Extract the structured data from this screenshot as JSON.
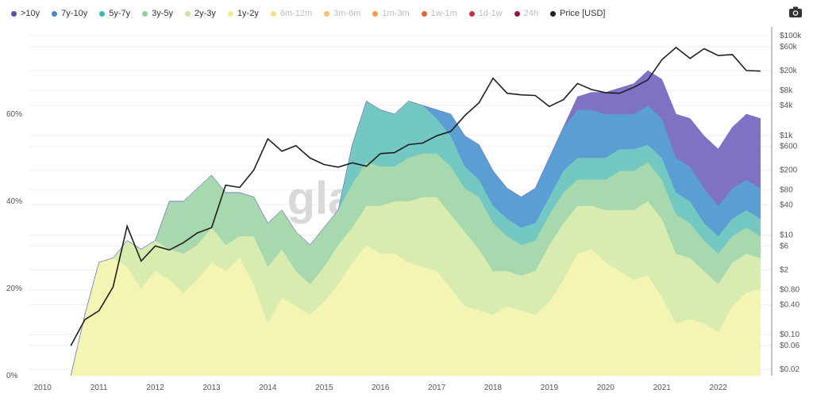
{
  "chart_data": {
    "type": "area",
    "stacked": true,
    "legend_placement": "top-left",
    "grid": true,
    "watermark": "glassnode",
    "x": [
      "2010-07",
      "2010-10",
      "2011-01",
      "2011-04",
      "2011-07",
      "2011-10",
      "2012-01",
      "2012-04",
      "2012-07",
      "2012-10",
      "2013-01",
      "2013-04",
      "2013-07",
      "2013-10",
      "2014-01",
      "2014-04",
      "2014-07",
      "2014-10",
      "2015-01",
      "2015-04",
      "2015-07",
      "2015-10",
      "2016-01",
      "2016-04",
      "2016-07",
      "2016-10",
      "2017-01",
      "2017-04",
      "2017-07",
      "2017-10",
      "2018-01",
      "2018-04",
      "2018-07",
      "2018-10",
      "2019-01",
      "2019-04",
      "2019-07",
      "2019-10",
      "2020-01",
      "2020-04",
      "2020-07",
      "2020-10",
      "2021-01",
      "2021-04",
      "2021-07",
      "2021-10",
      "2022-01",
      "2022-04",
      "2022-07",
      "2022-10"
    ],
    "series": [
      {
        "name": "1y-2y",
        "color": "#f5f5b3",
        "values": [
          0,
          14,
          26,
          27,
          25,
          20,
          24,
          22,
          19,
          22,
          26,
          24,
          27,
          21,
          12,
          18,
          16,
          14,
          17,
          21,
          26,
          30,
          28,
          28,
          26,
          25,
          24,
          20,
          16,
          15,
          14,
          16,
          15,
          14,
          17,
          22,
          28,
          29,
          26,
          24,
          22,
          23,
          18,
          12,
          13,
          12,
          10,
          16,
          19,
          20
        ]
      },
      {
        "name": "2y-3y",
        "color": "#d8ecb0",
        "values": [
          0,
          0,
          0,
          0,
          6,
          9,
          7,
          7,
          9,
          8,
          8,
          6,
          5,
          11,
          13,
          11,
          8,
          7,
          8,
          9,
          8,
          9,
          11,
          12,
          14,
          16,
          17,
          17,
          17,
          14,
          10,
          8,
          8,
          10,
          13,
          13,
          11,
          10,
          12,
          14,
          16,
          17,
          18,
          16,
          14,
          12,
          11,
          10,
          9,
          7
        ]
      },
      {
        "name": "3y-5y",
        "color": "#a8d8ad",
        "values": [
          0,
          0,
          0,
          0,
          0,
          0,
          0,
          11,
          12,
          13,
          12,
          12,
          10,
          9,
          10,
          9,
          9,
          9,
          9,
          8,
          10,
          10,
          9,
          8,
          10,
          10,
          10,
          11,
          10,
          12,
          11,
          8,
          7,
          7,
          7,
          7,
          6,
          6,
          7,
          9,
          9,
          9,
          9,
          9,
          8,
          7,
          7,
          6,
          6,
          5
        ]
      },
      {
        "name": "5y-7y",
        "color": "#73c9c2",
        "values": [
          0,
          0,
          0,
          0,
          0,
          0,
          0,
          0,
          0,
          0,
          0,
          0,
          0,
          0,
          0,
          0,
          0,
          0,
          0,
          0,
          9,
          14,
          13,
          12,
          13,
          11,
          8,
          7,
          5,
          4,
          4,
          4,
          4,
          4,
          4,
          5,
          5,
          5,
          5,
          5,
          5,
          4,
          5,
          5,
          5,
          4,
          4,
          4,
          4,
          4
        ]
      },
      {
        "name": "7y-10y",
        "color": "#5a9ed4",
        "values": [
          0,
          0,
          0,
          0,
          0,
          0,
          0,
          0,
          0,
          0,
          0,
          0,
          0,
          0,
          0,
          0,
          0,
          0,
          0,
          0,
          0,
          0,
          0,
          0,
          0,
          0,
          2,
          5,
          7,
          8,
          8,
          7,
          7,
          8,
          9,
          10,
          11,
          11,
          10,
          8,
          8,
          9,
          9,
          8,
          8,
          8,
          7,
          7,
          7,
          7
        ]
      },
      {
        "name": ">10y",
        "color": "#7d72c4",
        "values": [
          0,
          0,
          0,
          0,
          0,
          0,
          0,
          0,
          0,
          0,
          0,
          0,
          0,
          0,
          0,
          0,
          0,
          0,
          0,
          0,
          0,
          0,
          0,
          0,
          0,
          0,
          0,
          0,
          0,
          0,
          0,
          0,
          0,
          0,
          0,
          0,
          3,
          4,
          5,
          6,
          7,
          8,
          9,
          10,
          11,
          12,
          13,
          14,
          15,
          16
        ]
      }
    ],
    "price_series": {
      "name": "Price [USD]",
      "color": "#1f1f1f",
      "values": [
        0.06,
        0.2,
        0.3,
        0.9,
        15,
        3,
        6,
        5,
        7,
        11,
        14,
        100,
        90,
        200,
        850,
        480,
        620,
        350,
        260,
        230,
        280,
        240,
        430,
        450,
        650,
        700,
        980,
        1200,
        2500,
        4500,
        14000,
        7000,
        6500,
        6300,
        3800,
        5200,
        11000,
        8300,
        7200,
        7000,
        9200,
        13000,
        33000,
        58000,
        35000,
        55000,
        40000,
        42000,
        20000,
        19500
      ]
    },
    "legend": [
      {
        "label": ">10y",
        "color": "#5b4fa8",
        "active": true
      },
      {
        "label": "7y-10y",
        "color": "#3f8cc6",
        "active": true
      },
      {
        "label": "5y-7y",
        "color": "#3eb8b1",
        "active": true
      },
      {
        "label": "3y-5y",
        "color": "#93cf98",
        "active": true
      },
      {
        "label": "2y-3y",
        "color": "#c9e69c",
        "active": true
      },
      {
        "label": "1y-2y",
        "color": "#ebf08d",
        "active": true
      },
      {
        "label": "6m-12m",
        "color": "#f7e18a",
        "active": false
      },
      {
        "label": "3m-6m",
        "color": "#f7c46e",
        "active": false
      },
      {
        "label": "1m-3m",
        "color": "#f39a4e",
        "active": false
      },
      {
        "label": "1w-1m",
        "color": "#e5623c",
        "active": false
      },
      {
        "label": "1d-1w",
        "color": "#c83243",
        "active": false
      },
      {
        "label": "24h",
        "color": "#9a1346",
        "active": false
      },
      {
        "label": "Price [USD]",
        "color": "#222222",
        "active": true
      }
    ],
    "x_ticks": [
      "2010",
      "2011",
      "2012",
      "2013",
      "2014",
      "2015",
      "2016",
      "2017",
      "2018",
      "2019",
      "2020",
      "2021",
      "2022"
    ],
    "y_left_ticks": [
      "0%",
      "20%",
      "40%",
      "60%"
    ],
    "y_left_range": [
      0,
      80
    ],
    "y_right_ticks": [
      "$0.02",
      "$0.06",
      "$0.10",
      "$0.40",
      "$0.80",
      "$2",
      "$6",
      "$10",
      "$40",
      "$80",
      "$200",
      "$600",
      "$1k",
      "$4k",
      "$8k",
      "$20k",
      "$60k",
      "$100k"
    ],
    "y_right_range": [
      0.015,
      150000
    ],
    "y_right_scale": "log"
  }
}
